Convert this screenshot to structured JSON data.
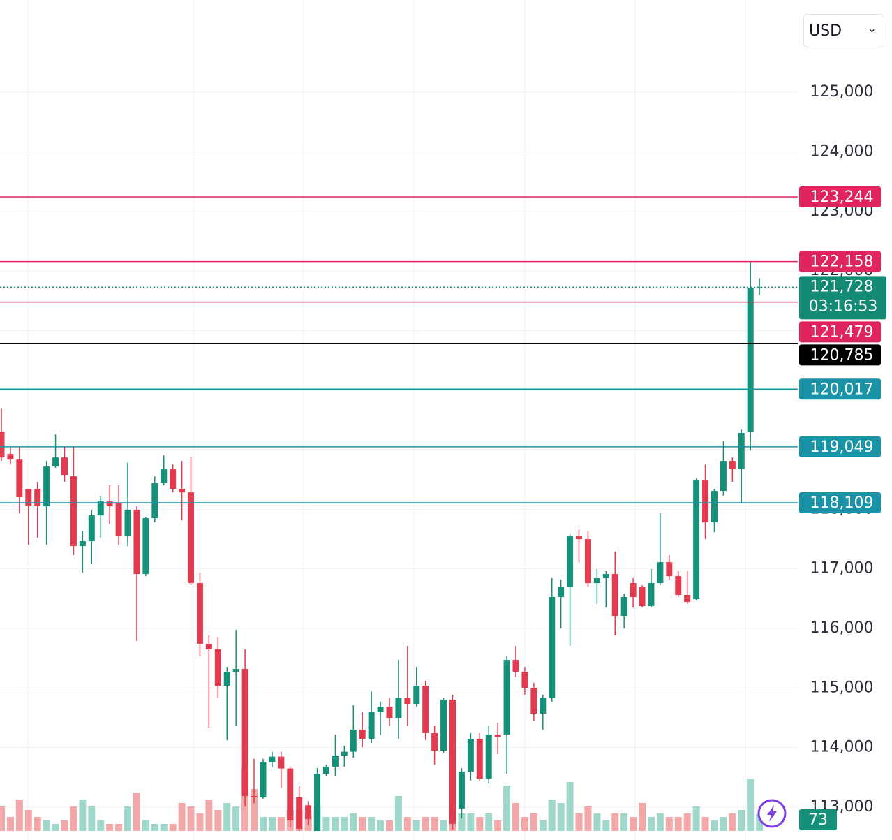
{
  "currency": "USD",
  "chart_data": {
    "type": "candlestick",
    "open": [
      119304,
      118929,
      118835,
      118343,
      118343,
      118050,
      118718,
      118870,
      118554,
      117382,
      117464,
      117898,
      118132,
      118108,
      117546,
      117991,
      116913,
      117851,
      118437,
      118671,
      118343,
      118284,
      116761,
      115741,
      115648,
      115038,
      115273,
      115319,
      113186,
      113163,
      113753,
      113847,
      113648,
      113163,
      113030,
      112600,
      113561,
      113678,
      113866,
      113929,
      114300,
      114147,
      114593,
      114687,
      114499,
      114827,
      114733,
      115038,
      114241,
      113948,
      114804,
      112976,
      113597,
      114147,
      113479,
      114218,
      114218,
      115471,
      115273,
      115003,
      114569,
      114827,
      116527,
      116702,
      117546,
      117499,
      116761,
      116843,
      116913,
      116210,
      116761,
      116702,
      116374,
      116761,
      117112,
      116878,
      116562,
      116491,
      118484,
      117780,
      118308,
      118812,
      118671,
      119304,
      121718
    ],
    "high": [
      119690,
      119046,
      119046,
      118343,
      118460,
      118812,
      119257,
      119046,
      119046,
      117640,
      117991,
      118226,
      118402,
      118402,
      118788,
      118050,
      117874,
      118554,
      118905,
      118753,
      118812,
      118870,
      116937,
      115882,
      115858,
      115354,
      115976,
      115648,
      113811,
      113811,
      113929,
      113929,
      113671,
      113350,
      113100,
      113655,
      113714,
      114218,
      114030,
      114710,
      114593,
      114944,
      114768,
      114827,
      115471,
      115706,
      115354,
      115120,
      114358,
      114827,
      114886,
      113655,
      114241,
      114241,
      114358,
      114417,
      115530,
      115706,
      115354,
      115085,
      114886,
      116843,
      116819,
      117581,
      117663,
      117640,
      116995,
      116960,
      117288,
      116585,
      116843,
      116726,
      116995,
      117932,
      117229,
      116960,
      116960,
      118519,
      118753,
      118343,
      119140,
      118870,
      119339,
      122152,
      121880
    ],
    "low": [
      118812,
      118753,
      117933,
      117405,
      117522,
      117405,
      118695,
      118460,
      117230,
      116937,
      117077,
      117522,
      117757,
      117405,
      117382,
      115788,
      116878,
      117780,
      118401,
      118284,
      117816,
      116726,
      115530,
      114323,
      114827,
      114124,
      114358,
      113010,
      113069,
      113139,
      113671,
      113327,
      112659,
      112600,
      112700,
      112600,
      113514,
      113514,
      113678,
      113831,
      114006,
      114077,
      114206,
      114358,
      114147,
      114358,
      114686,
      114124,
      113714,
      113913,
      112624,
      112812,
      113444,
      113444,
      113397,
      113889,
      113561,
      115179,
      114886,
      114452,
      114300,
      114768,
      116000,
      115706,
      117112,
      116702,
      116409,
      116350,
      115882,
      116000,
      116350,
      116350,
      116350,
      116726,
      116819,
      116526,
      116409,
      116468,
      117499,
      117616,
      118226,
      118460,
      118109,
      118988,
      121600
    ],
    "close": [
      118870,
      118835,
      118203,
      118050,
      118050,
      118718,
      118870,
      118577,
      117382,
      117464,
      117898,
      118132,
      118050,
      117546,
      117991,
      116913,
      117851,
      118437,
      118671,
      118343,
      118284,
      116761,
      115741,
      115648,
      115038,
      115273,
      115319,
      113186,
      113163,
      113753,
      113847,
      113648,
      112776,
      112635,
      112800,
      113561,
      113678,
      113866,
      113929,
      114300,
      114147,
      114593,
      114687,
      114499,
      114827,
      114733,
      115038,
      114241,
      113948,
      114804,
      112718,
      113597,
      114147,
      113479,
      114218,
      114182,
      115471,
      115273,
      115003,
      114569,
      114827,
      116527,
      116702,
      117546,
      117499,
      116761,
      116843,
      116913,
      116210,
      116526,
      116526,
      116374,
      116761,
      117112,
      116878,
      116562,
      116444,
      118484,
      117780,
      118308,
      118812,
      118671,
      119281,
      121718,
      121728
    ],
    "volume": [
      105,
      60,
      135,
      90,
      60,
      45,
      30,
      45,
      105,
      135,
      105,
      45,
      30,
      30,
      105,
      165,
      45,
      30,
      30,
      30,
      120,
      105,
      75,
      135,
      90,
      120,
      105,
      270,
      180,
      60,
      60,
      60,
      90,
      90,
      75,
      105,
      60,
      60,
      60,
      75,
      60,
      60,
      45,
      45,
      150,
      60,
      45,
      60,
      60,
      45,
      90,
      75,
      75,
      60,
      75,
      45,
      195,
      120,
      60,
      75,
      45,
      135,
      120,
      210,
      75,
      105,
      75,
      45,
      75,
      75,
      60,
      120,
      60,
      75,
      60,
      60,
      75,
      105,
      60,
      45,
      60,
      75,
      90,
      225,
      73
    ],
    "up_color": "#15917a",
    "down_color": "#e23a4f",
    "up_volume_color": "#9fd7cb",
    "down_volume_color": "#f2a7a8",
    "ylim": [
      112600,
      126550
    ],
    "vlim": [
      0,
      330
    ],
    "yticks": [
      {
        "value": 113000,
        "label": "113,000"
      },
      {
        "value": 114000,
        "label": "114,000"
      },
      {
        "value": 115000,
        "label": "115,000"
      },
      {
        "value": 116000,
        "label": "116,000"
      },
      {
        "value": 117000,
        "label": "117,000"
      },
      {
        "value": 118000,
        "label": "118,000"
      },
      {
        "value": 119000,
        "label": "119,000"
      },
      {
        "value": 120000,
        "label": "120,000"
      },
      {
        "value": 121000,
        "label": "121,000"
      },
      {
        "value": 122000,
        "label": "122,000"
      },
      {
        "value": 123000,
        "label": "123,000"
      },
      {
        "value": 124000,
        "label": "124,000"
      },
      {
        "value": 125000,
        "label": "125,000"
      }
    ],
    "grid": true,
    "price_lines": [
      {
        "value": 123244,
        "label": "123,244",
        "color": "#e0245e"
      },
      {
        "value": 122158,
        "label": "122,158",
        "color": "#e0245e"
      },
      {
        "value": 121479,
        "label": "121,479",
        "color": "#e0245e"
      },
      {
        "value": 120785,
        "label": "120,785",
        "color": "#000000"
      },
      {
        "value": 120017,
        "label": "120,017",
        "color": "#1a93a6"
      },
      {
        "value": 119049,
        "label": "119,049",
        "color": "#1a93a6"
      },
      {
        "value": 118109,
        "label": "118,109",
        "color": "#1a93a6"
      }
    ],
    "last_price": {
      "value": 121728,
      "label": "121,728",
      "countdown": "03:16:53",
      "color": "#138a73"
    }
  }
}
